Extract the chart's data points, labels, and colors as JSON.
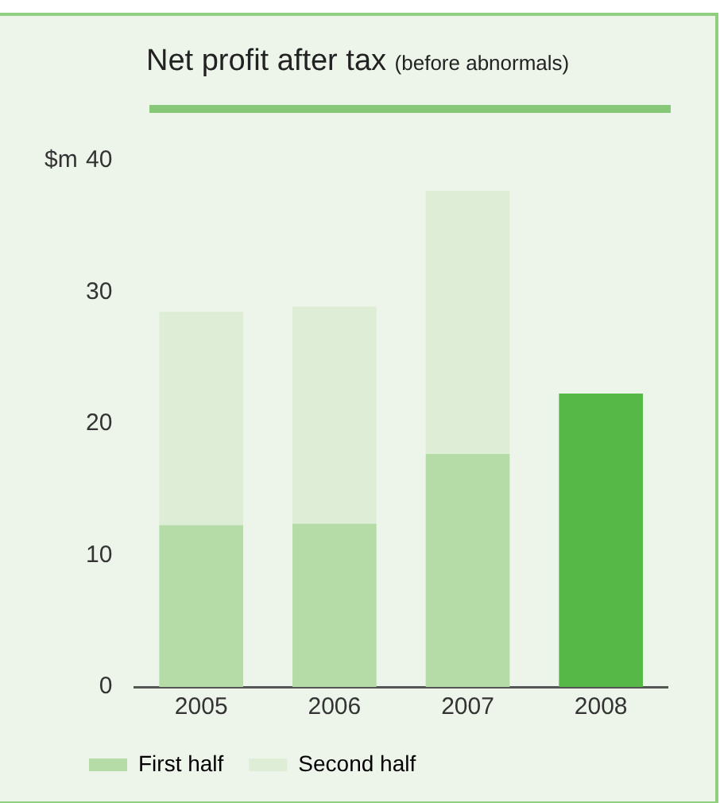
{
  "chart_data": {
    "type": "bar",
    "title": "Net profit after tax",
    "subtitle": "(before abnormals)",
    "ylabel": "$m",
    "stacked": true,
    "categories": [
      "2005",
      "2006",
      "2007",
      "2008"
    ],
    "series": [
      {
        "name": "First half",
        "color": "#b5dba6",
        "colors": [
          "#b5dba6",
          "#b5dba6",
          "#b5dba6",
          "#56b847"
        ],
        "values": [
          12.3,
          12.4,
          17.7,
          22.3
        ]
      },
      {
        "name": "Second half",
        "color": "#ddedd6",
        "values": [
          16.2,
          16.5,
          20.0,
          null
        ]
      }
    ],
    "ylim": [
      0,
      40
    ],
    "yticks": [
      0,
      10,
      20,
      30,
      40
    ],
    "grid": false,
    "legend": "bottom left"
  }
}
